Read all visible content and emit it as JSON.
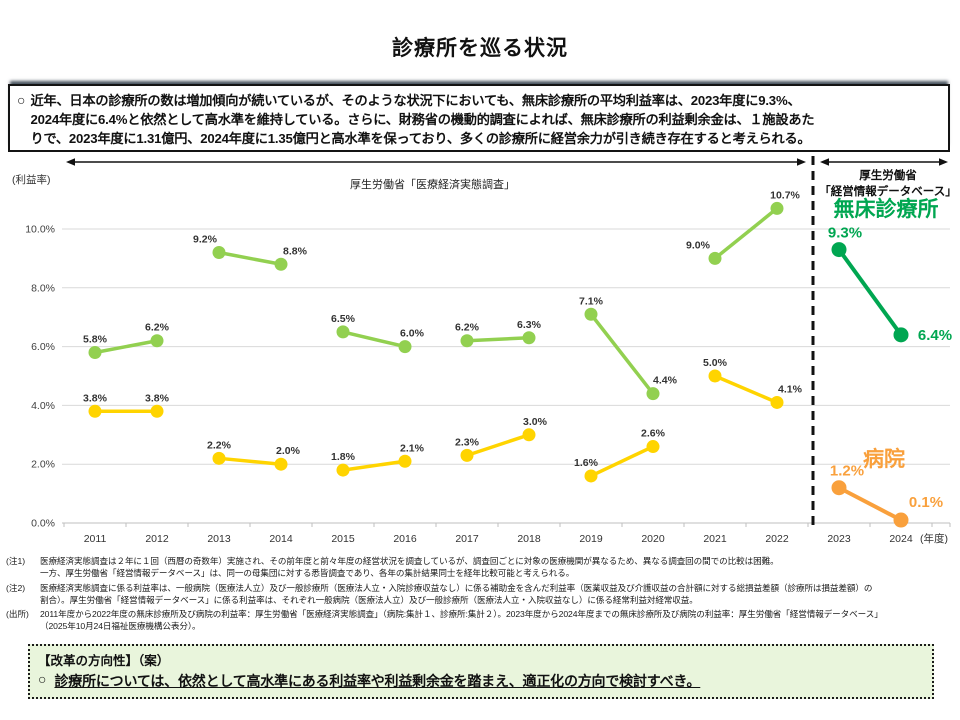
{
  "title": "診療所を巡る状況",
  "intro": {
    "marker": "○",
    "text": "近年、日本の診療所の数は増加傾向が続いているが、そのような状況下においても、無床診療所の平均利益率は、2023年度に9.3%、\n2024年度に6.4%と依然として高水準を維持している。さらに、財務省の機動的調査によれば、無床診療所の利益剰余金は、１施設あた\nりで、2023年度に1.31億円、2024年度に1.35億円と高水準を保っており、多くの診療所に経営余力が引き続き存在すると考えられる。"
  },
  "chart_data": {
    "type": "line",
    "ylabel": "(利益率)",
    "x_unit": "(年度)",
    "ylim": [
      0,
      11
    ],
    "grid": true,
    "years": [
      2011,
      2012,
      2013,
      2014,
      2015,
      2016,
      2017,
      2018,
      2019,
      2020,
      2021,
      2022,
      2023,
      2024
    ],
    "yticks": [
      {
        "v": 0,
        "label": "0.0%"
      },
      {
        "v": 2,
        "label": "2.0%"
      },
      {
        "v": 4,
        "label": "4.0%"
      },
      {
        "v": 6,
        "label": "6.0%"
      },
      {
        "v": 8,
        "label": "8.0%"
      },
      {
        "v": 10,
        "label": "10.0%"
      }
    ],
    "sections": [
      {
        "label": "厚生労働省「医療経済実態調査」",
        "year_range": [
          2011,
          2022
        ]
      },
      {
        "label": "厚生労働省\n「経営情報データベース」",
        "year_range": [
          2023,
          2024
        ]
      }
    ],
    "divider_between_years": [
      2022,
      2023
    ],
    "series": [
      {
        "id": "cs",
        "name": "無床診療所（医療経済実態調査）",
        "color": "#92D050",
        "segments": [
          [
            [
              2011,
              5.8
            ],
            [
              2012,
              6.2
            ]
          ],
          [
            [
              2013,
              9.2
            ],
            [
              2014,
              8.8
            ]
          ],
          [
            [
              2015,
              6.5
            ],
            [
              2016,
              6.0
            ]
          ],
          [
            [
              2017,
              6.2
            ],
            [
              2018,
              6.3
            ]
          ],
          [
            [
              2019,
              7.1
            ],
            [
              2020,
              4.4
            ]
          ],
          [
            [
              2021,
              9.0
            ],
            [
              2022,
              10.7
            ]
          ]
        ]
      },
      {
        "id": "hs",
        "name": "病院（医療経済実態調査）",
        "color": "#FFD400",
        "segments": [
          [
            [
              2011,
              3.8
            ],
            [
              2012,
              3.8
            ]
          ],
          [
            [
              2013,
              2.2
            ],
            [
              2014,
              2.0
            ]
          ],
          [
            [
              2015,
              1.8
            ],
            [
              2016,
              2.1
            ]
          ],
          [
            [
              2017,
              2.3
            ],
            [
              2018,
              3.0
            ]
          ],
          [
            [
              2019,
              1.6
            ],
            [
              2020,
              2.6
            ]
          ],
          [
            [
              2021,
              5.0
            ],
            [
              2022,
              4.1
            ]
          ]
        ]
      },
      {
        "id": "cdb",
        "name": "無床診療所（経営情報データベース）",
        "legend": "無床診療所",
        "color": "#00A651",
        "segments": [
          [
            [
              2023,
              9.3
            ],
            [
              2024,
              6.4
            ]
          ]
        ]
      },
      {
        "id": "hdb",
        "name": "病院（経営情報データベース）",
        "legend": "病院",
        "color": "#F9A03C",
        "segments": [
          [
            [
              2023,
              1.2
            ],
            [
              2024,
              0.1
            ]
          ]
        ]
      }
    ]
  },
  "notes": [
    {
      "label": "(注1)",
      "text": "医療経済実態調査は２年に１回（西暦の奇数年）実施され、その前年度と前々年度の経営状況を調査しているが、調査回ごとに対象の医療機関が異なるため、異なる調査回の間での比較は困難。\n一方、厚生労働省「経営情報データベース」は、同一の母集団に対する悉皆調査であり、各年の集計結果同士を経年比較可能と考えられる。"
    },
    {
      "label": "(注2)",
      "text": "医療経済実態調査に係る利益率は、一般病院（医療法人立）及び一般診療所（医療法人立・入院診療収益なし）に係る補助金を含んだ利益率（医業収益及び介護収益の合計額に対する総損益差額（診療所は損益差額）の\n割合）。厚生労働省「経営情報データベース」に係る利益率は、それぞれ一般病院（医療法人立）及び一般診療所（医療法人立・入院収益なし）に係る経常利益対経常収益。"
    },
    {
      "label": "(出所)",
      "text": "2011年度から2022年度の無床診療所及び病院の利益率：厚生労働省「医療経済実態調査」（病院:集計１、診療所:集計２）。2023年度から2024年度までの無床診療所及び病院の利益率：厚生労働省「経営情報データベース」\n（2025年10月24日福祉医療機構公表分）。"
    }
  ],
  "direction_box": {
    "title": "【改革の方向性】（案）",
    "marker": "○",
    "text": "診療所については、依然として高水準にある利益率や利益剰余金を踏まえ、適正化の方向で検討すべき。"
  }
}
